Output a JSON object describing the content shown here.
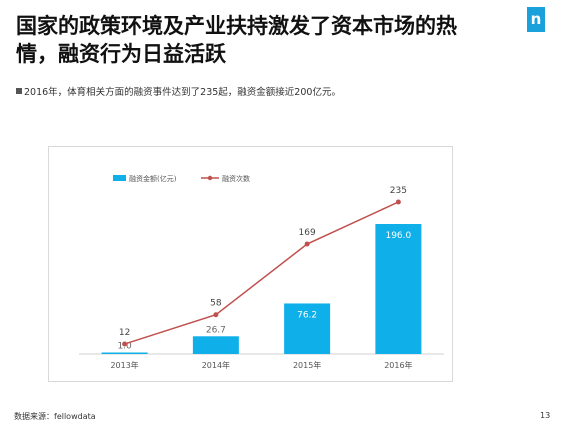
{
  "slide": {
    "title": "国家的政策环境及产业扶持激发了资本市场的热情，融资行为日益活跃",
    "bullet": "2016年，体育相关方面的融资事件达到了235起，融资金额接近200亿元。",
    "source": "数据来源：fellowdata",
    "page_number": "13",
    "logo_glyph": "n",
    "logo_color": "#1aa0db"
  },
  "chart_data": {
    "type": "bar",
    "categories": [
      "2013年",
      "2014年",
      "2015年",
      "2016年"
    ],
    "series": [
      {
        "name": "融资金额(亿元)",
        "type": "bar",
        "values": [
          1.0,
          26.7,
          76.2,
          196.0
        ],
        "labels": [
          "1.0",
          "26.7",
          "76.2",
          "196.0"
        ],
        "color": "#0fb0ea"
      },
      {
        "name": "融资次数",
        "type": "line",
        "values": [
          12,
          58,
          169,
          235
        ],
        "labels": [
          "12",
          "58",
          "169",
          "235"
        ],
        "color": "#c0504d"
      }
    ],
    "legend_position": "top-left",
    "grid": false
  }
}
